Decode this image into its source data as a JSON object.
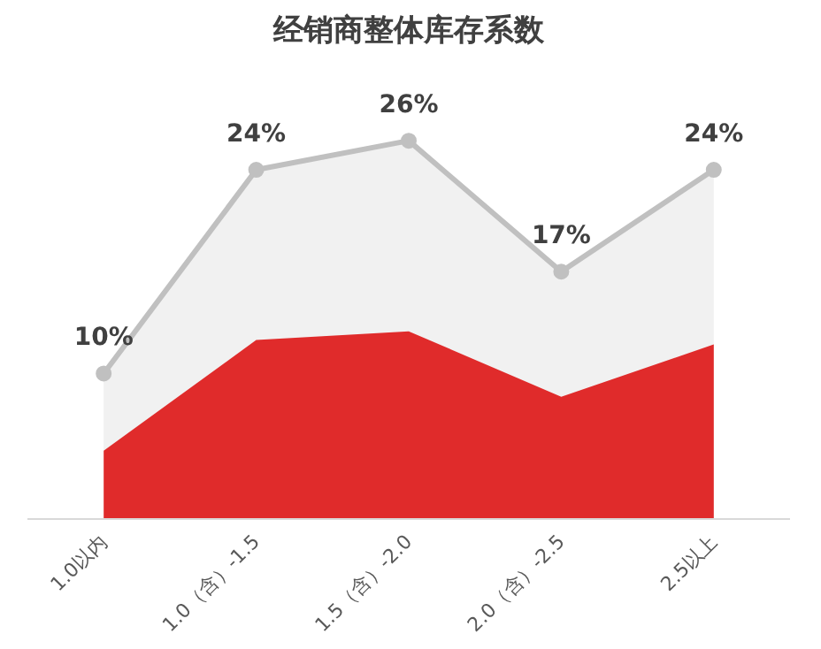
{
  "chart_data": {
    "type": "area",
    "title": "经销商整体库存系数",
    "categories": [
      "1.0以内",
      "1.0（含）-1.5",
      "1.5（含）-2.0",
      "2.0（含）-2.5",
      "2.5以上"
    ],
    "tick_labels": "x",
    "grid": false,
    "marker": "circle",
    "series": [
      {
        "color": "#c0c0c0",
        "values": [
          10,
          24,
          26,
          17,
          24
        ],
        "value_labels": [
          "10%",
          "24%",
          "26%",
          "17%",
          "24%"
        ]
      },
      {
        "color": "#e02b2b",
        "values": [
          4.7,
          12.3,
          12.9,
          8.4,
          12.0
        ],
        "marker": "none"
      }
    ]
  }
}
